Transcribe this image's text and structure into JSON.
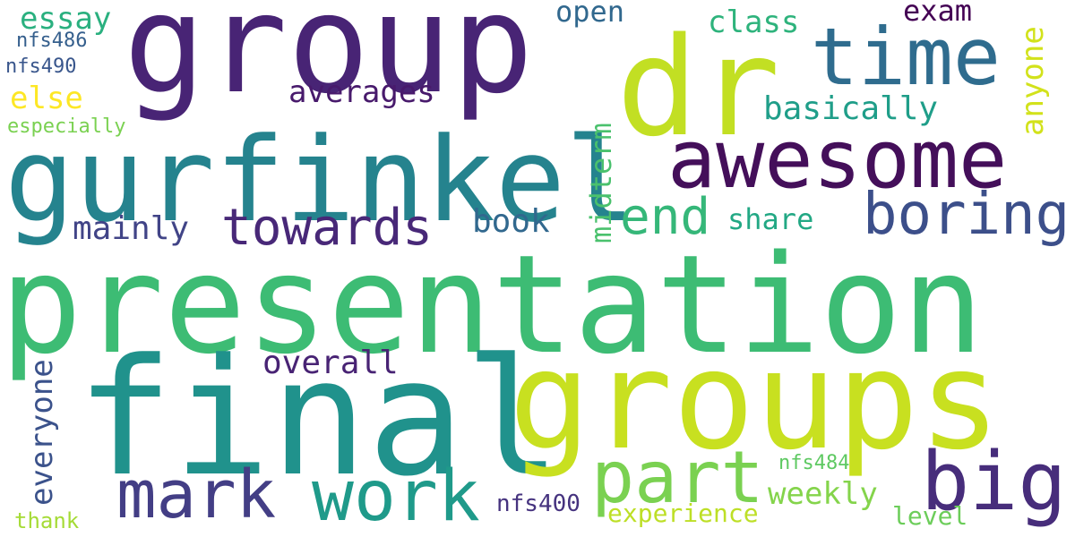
{
  "words": [
    {
      "key": "presentation",
      "text": "presentation",
      "color": "#3dbc74"
    },
    {
      "key": "group",
      "text": "group",
      "color": "#482475"
    },
    {
      "key": "final",
      "text": "final",
      "color": "#20928c"
    },
    {
      "key": "groups",
      "text": "groups",
      "color": "#c8e020"
    },
    {
      "key": "dr",
      "text": "dr",
      "color": "#c2df23"
    },
    {
      "key": "gurfinkel",
      "text": "gurfinkel",
      "color": "#25838e"
    },
    {
      "key": "awesome",
      "text": "awesome",
      "color": "#440f5a"
    },
    {
      "key": "time",
      "text": "time",
      "color": "#2f6c8e"
    },
    {
      "key": "boring",
      "text": "boring",
      "color": "#3c4f8a"
    },
    {
      "key": "mark",
      "text": "mark",
      "color": "#433e85"
    },
    {
      "key": "work",
      "text": "work",
      "color": "#1f9a8a"
    },
    {
      "key": "part",
      "text": "part",
      "color": "#7ad151"
    },
    {
      "key": "big",
      "text": "big",
      "color": "#472d7b"
    },
    {
      "key": "towards",
      "text": "towards",
      "color": "#482878"
    },
    {
      "key": "end",
      "text": "end",
      "color": "#35b779"
    },
    {
      "key": "essay",
      "text": "essay",
      "color": "#2ab07f"
    },
    {
      "key": "open",
      "text": "open",
      "color": "#31688e"
    },
    {
      "key": "class",
      "text": "class",
      "color": "#2eb37c"
    },
    {
      "key": "exam",
      "text": "exam",
      "color": "#440154"
    },
    {
      "key": "anyone",
      "text": "anyone",
      "color": "#d2e21b"
    },
    {
      "key": "averages",
      "text": "averages",
      "color": "#481a6c"
    },
    {
      "key": "basically",
      "text": "basically",
      "color": "#1f9e89"
    },
    {
      "key": "else",
      "text": "else",
      "color": "#fde725"
    },
    {
      "key": "midterm",
      "text": "midterm",
      "color": "#4ac16d"
    },
    {
      "key": "book",
      "text": "book",
      "color": "#31688e"
    },
    {
      "key": "share",
      "text": "share",
      "color": "#22a884"
    },
    {
      "key": "mainly",
      "text": "mainly",
      "color": "#414487"
    },
    {
      "key": "overall",
      "text": "overall",
      "color": "#482374"
    },
    {
      "key": "everyone",
      "text": "everyone",
      "color": "#3b528b"
    },
    {
      "key": "weekly",
      "text": "weekly",
      "color": "#84d44b"
    },
    {
      "key": "nfs484",
      "text": "nfs484",
      "color": "#5ec962"
    },
    {
      "key": "nfs486",
      "text": "nfs486",
      "color": "#355f8d"
    },
    {
      "key": "nfs490",
      "text": "nfs490",
      "color": "#39568c"
    },
    {
      "key": "especially",
      "text": "especially",
      "color": "#7ad151"
    },
    {
      "key": "nfs400",
      "text": "nfs400",
      "color": "#46337f"
    },
    {
      "key": "experience",
      "text": "experience",
      "color": "#bddf26"
    },
    {
      "key": "level",
      "text": "level",
      "color": "#6ccd5a"
    },
    {
      "key": "thank",
      "text": "thank",
      "color": "#a5db36"
    }
  ]
}
